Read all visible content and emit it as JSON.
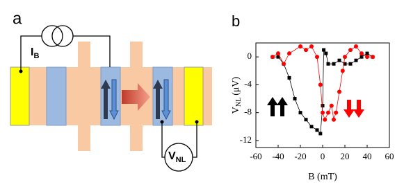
{
  "panel_a": {
    "label": "a",
    "current_label": "I",
    "current_sub": "B",
    "voltage_label": "V",
    "voltage_sub": "NL"
  },
  "chart_data": {
    "type": "line",
    "panel_label": "b",
    "xlabel": "B (mT)",
    "ylabel": "V",
    "ylabel_sub": "NL",
    "ylabel_unit": "(μV)",
    "xlim": [
      -60,
      60
    ],
    "xticks": [
      -60,
      -40,
      -20,
      0,
      20,
      40,
      60
    ],
    "ylim": [
      -13,
      2
    ],
    "yticks": [
      -12,
      -8,
      -4,
      0
    ],
    "series": [
      {
        "color": "#000000",
        "marker": "square",
        "x": [
          -45,
          -40,
          -35,
          -30,
          -25,
          -20,
          -15,
          -10,
          -5,
          -2,
          0,
          1,
          3,
          5,
          10,
          15,
          20,
          25,
          30,
          35,
          40,
          45
        ],
        "values": [
          0,
          0,
          -1,
          -3,
          -6,
          -8,
          -9,
          -10,
          -10.5,
          -11,
          -7,
          1,
          0.5,
          -1,
          -1,
          -0.5,
          -1,
          -1,
          -0.5,
          0,
          0.5,
          0
        ]
      },
      {
        "color": "#ff0000",
        "marker": "circle",
        "x": [
          -45,
          -40,
          -35,
          -30,
          -20,
          -15,
          -10,
          -5,
          -2,
          0,
          2,
          5,
          8,
          10,
          12,
          15,
          18,
          20,
          25,
          30,
          35,
          40,
          45
        ],
        "values": [
          0,
          0.5,
          -1,
          0.5,
          1.5,
          1,
          1.5,
          0,
          -4,
          -8,
          -9,
          -8,
          -7,
          -9,
          -8,
          -5,
          -2,
          0,
          1,
          1.5,
          0.5,
          0,
          0
        ]
      }
    ]
  }
}
